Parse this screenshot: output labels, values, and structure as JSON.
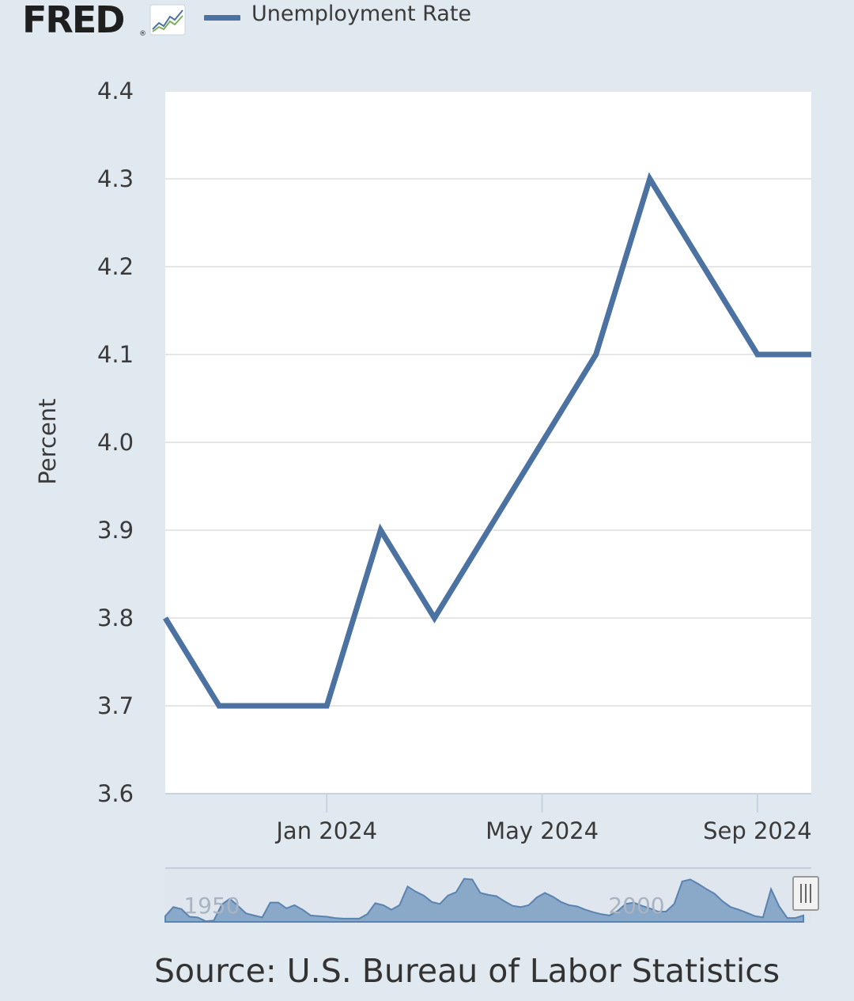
{
  "header": {
    "logo_text": "FRED",
    "legend_label": "Unemployment Rate"
  },
  "source": "Source: U.S. Bureau of Labor Statistics",
  "colors": {
    "line": "#4c72a1",
    "background": "#e1e9f0",
    "plot_area": "#ffffff",
    "grid": "#e6e6e6",
    "navigator_fill": "#8aa8c8"
  },
  "chart_data": {
    "type": "line",
    "ylabel": "Percent",
    "ylim": [
      3.6,
      4.4
    ],
    "yticks": [
      "3.6",
      "3.7",
      "3.8",
      "3.9",
      "4.0",
      "4.1",
      "4.2",
      "4.3",
      "4.4"
    ],
    "xlim": [
      "2023-10",
      "2024-10"
    ],
    "xticks": [
      {
        "date": "2024-01",
        "label": "Jan 2024"
      },
      {
        "date": "2024-05",
        "label": "May 2024"
      },
      {
        "date": "2024-09",
        "label": "Sep 2024"
      }
    ],
    "grid": true,
    "legend_position": "top-left",
    "series": [
      {
        "name": "Unemployment Rate",
        "x": [
          "2023-10",
          "2023-11",
          "2023-12",
          "2024-01",
          "2024-02",
          "2024-03",
          "2024-04",
          "2024-05",
          "2024-06",
          "2024-07",
          "2024-08",
          "2024-09",
          "2024-10"
        ],
        "values": [
          3.8,
          3.7,
          3.7,
          3.7,
          3.9,
          3.8,
          3.9,
          4.0,
          4.1,
          4.3,
          4.2,
          4.1,
          4.1
        ]
      }
    ],
    "navigator": {
      "labels": [
        "1950",
        "2000"
      ],
      "values": [
        3.9,
        5.3,
        5.0,
        3.8,
        3.7,
        3.1,
        3.2,
        5.7,
        6.6,
        5.5,
        4.3,
        4.0,
        3.7,
        6.0,
        6.0,
        5.1,
        5.6,
        4.9,
        4.0,
        3.9,
        3.8,
        3.6,
        3.5,
        3.5,
        3.5,
        4.2,
        5.9,
        5.6,
        4.9,
        5.6,
        8.5,
        7.7,
        7.1,
        6.1,
        5.8,
        7.1,
        7.6,
        9.7,
        9.6,
        7.5,
        7.2,
        7.0,
        6.2,
        5.5,
        5.3,
        5.6,
        6.8,
        7.5,
        6.9,
        6.1,
        5.6,
        5.4,
        4.9,
        4.5,
        4.2,
        4.0,
        4.7,
        5.8,
        6.0,
        5.5,
        5.1,
        4.6,
        4.6,
        5.8,
        9.3,
        9.6,
        8.9,
        8.1,
        7.4,
        6.2,
        5.3,
        4.9,
        4.4,
        3.9,
        3.7,
        8.1,
        5.4,
        3.6,
        3.6,
        4.0
      ]
    }
  }
}
